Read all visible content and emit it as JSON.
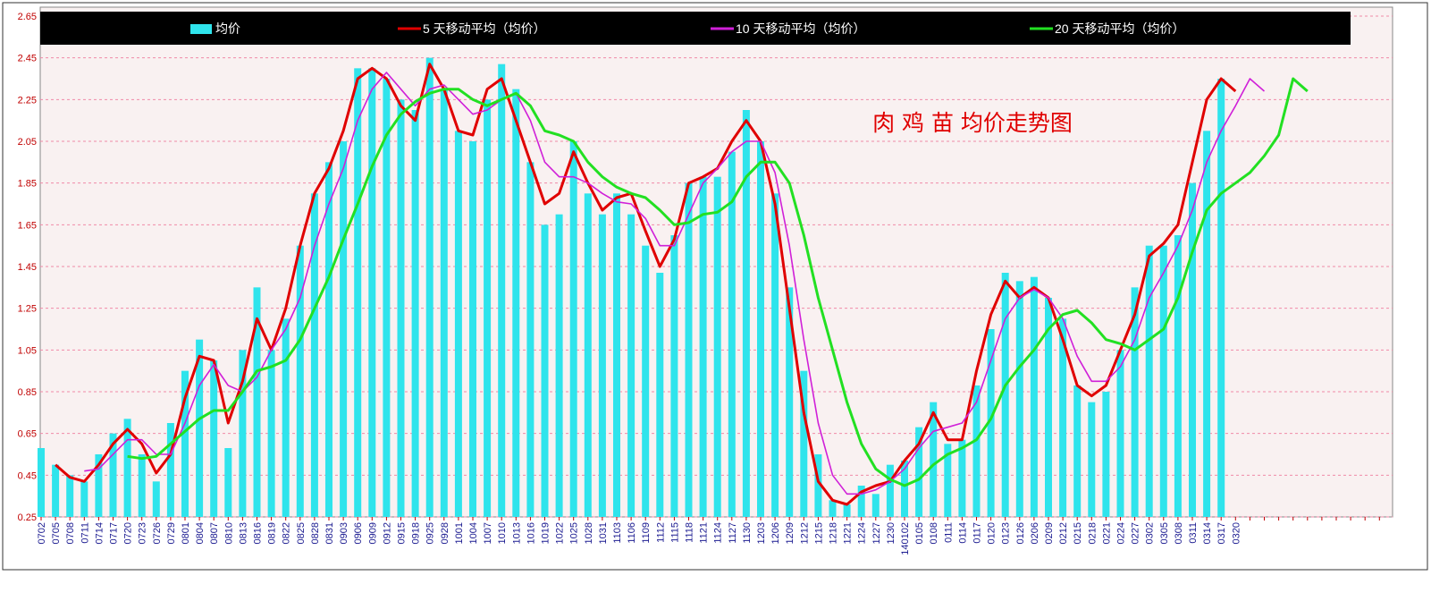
{
  "chart_data": {
    "type": "bar-line",
    "title": "肉 鸡 苗 均价走势图",
    "categories": [
      "0702",
      "0705",
      "0708",
      "0711",
      "0714",
      "0717",
      "0720",
      "0723",
      "0726",
      "0729",
      "0801",
      "0804",
      "0807",
      "0810",
      "0813",
      "0816",
      "0819",
      "0822",
      "0825",
      "0828",
      "0831",
      "0903",
      "0906",
      "0909",
      "0912",
      "0915",
      "0918",
      "0925",
      "0928",
      "1001",
      "1004",
      "1007",
      "1010",
      "1013",
      "1016",
      "1019",
      "1022",
      "1025",
      "1028",
      "1031",
      "1103",
      "1106",
      "1109",
      "1112",
      "1115",
      "1118",
      "1121",
      "1124",
      "1127",
      "1130",
      "1203",
      "1206",
      "1209",
      "1212",
      "1215",
      "1218",
      "1221",
      "1224",
      "1227",
      "1230",
      "140102",
      "0105",
      "0108",
      "0111",
      "0114",
      "0117",
      "0120",
      "0123",
      "0126",
      "0206",
      "0209",
      "0212",
      "0215",
      "0218",
      "0221",
      "0224",
      "0227",
      "0302",
      "0305",
      "0308",
      "0311",
      "0314",
      "0317",
      "0320",
      null,
      null,
      null,
      null,
      null,
      null,
      null,
      null,
      null,
      null
    ],
    "series": [
      {
        "name": "均价",
        "kind": "bar",
        "color": "#2fe4ec",
        "values": [
          0.58,
          0.5,
          0.45,
          0.42,
          0.55,
          0.65,
          0.72,
          0.55,
          0.42,
          0.7,
          0.95,
          1.1,
          1.0,
          0.58,
          1.05,
          1.35,
          1.05,
          1.2,
          1.55,
          1.8,
          1.95,
          2.05,
          2.4,
          2.4,
          2.35,
          2.25,
          2.2,
          2.45,
          2.3,
          2.1,
          2.05,
          2.25,
          2.42,
          2.3,
          1.95,
          1.65,
          1.7,
          2.05,
          1.8,
          1.7,
          1.8,
          1.7,
          1.55,
          1.42,
          1.6,
          1.85,
          1.88,
          1.88,
          2.0,
          2.2,
          2.05,
          1.8,
          1.35,
          0.95,
          0.55,
          0.33,
          0.31,
          0.4,
          0.36,
          0.5,
          0.52,
          0.68,
          0.8,
          0.6,
          0.62,
          0.88,
          1.15,
          1.42,
          1.38,
          1.4,
          1.3,
          1.2,
          0.88,
          0.8,
          0.85,
          1.05,
          1.35,
          1.55,
          1.55,
          1.6,
          1.85,
          2.1,
          2.35,
          null,
          null,
          null,
          null,
          null,
          null,
          null,
          null,
          null,
          null,
          null
        ]
      },
      {
        "name": "5 天移动平均（均价）",
        "kind": "line",
        "color": "#e00000",
        "values": [
          null,
          0.5,
          0.44,
          0.42,
          0.5,
          0.6,
          0.67,
          0.6,
          0.46,
          0.55,
          0.82,
          1.02,
          1.0,
          0.7,
          0.9,
          1.2,
          1.05,
          1.25,
          1.55,
          1.8,
          1.92,
          2.1,
          2.35,
          2.4,
          2.35,
          2.22,
          2.15,
          2.42,
          2.3,
          2.1,
          2.08,
          2.3,
          2.35,
          2.15,
          1.95,
          1.75,
          1.8,
          2.0,
          1.85,
          1.72,
          1.78,
          1.8,
          1.62,
          1.45,
          1.58,
          1.85,
          1.88,
          1.92,
          2.05,
          2.15,
          2.05,
          1.75,
          1.25,
          0.75,
          0.42,
          0.33,
          0.31,
          0.37,
          0.4,
          0.42,
          0.52,
          0.6,
          0.75,
          0.62,
          0.62,
          0.95,
          1.22,
          1.38,
          1.3,
          1.35,
          1.3,
          1.1,
          0.88,
          0.83,
          0.88,
          1.05,
          1.22,
          1.5,
          1.56,
          1.65,
          1.95,
          2.25,
          2.35,
          2.29,
          null,
          null,
          null,
          null,
          null,
          null,
          null,
          null,
          null,
          null
        ]
      },
      {
        "name": "10 天移动平均（均价）",
        "kind": "line",
        "color": "#d020d8",
        "values": [
          null,
          null,
          null,
          0.47,
          0.48,
          0.55,
          0.62,
          0.62,
          0.55,
          0.55,
          0.7,
          0.88,
          0.98,
          0.88,
          0.85,
          0.92,
          1.05,
          1.15,
          1.3,
          1.55,
          1.75,
          1.92,
          2.15,
          2.3,
          2.38,
          2.3,
          2.22,
          2.3,
          2.32,
          2.25,
          2.18,
          2.2,
          2.25,
          2.28,
          2.15,
          1.95,
          1.88,
          1.88,
          1.85,
          1.8,
          1.76,
          1.75,
          1.68,
          1.55,
          1.55,
          1.7,
          1.85,
          1.92,
          2.0,
          2.05,
          2.05,
          1.9,
          1.55,
          1.1,
          0.7,
          0.45,
          0.36,
          0.36,
          0.38,
          0.42,
          0.48,
          0.58,
          0.66,
          0.68,
          0.7,
          0.8,
          1.0,
          1.2,
          1.3,
          1.34,
          1.3,
          1.2,
          1.02,
          0.9,
          0.9,
          0.97,
          1.1,
          1.3,
          1.42,
          1.55,
          1.72,
          1.95,
          2.1,
          2.22,
          2.35,
          2.29,
          null,
          null,
          null,
          null,
          null,
          null,
          null,
          null
        ]
      },
      {
        "name": "20 天移动平均（均价）",
        "kind": "line",
        "color": "#22e022",
        "values": [
          null,
          null,
          null,
          null,
          null,
          null,
          0.54,
          0.53,
          0.54,
          0.6,
          0.66,
          0.72,
          0.76,
          0.76,
          0.85,
          0.95,
          0.97,
          1.0,
          1.1,
          1.25,
          1.4,
          1.58,
          1.75,
          1.93,
          2.08,
          2.18,
          2.24,
          2.28,
          2.3,
          2.3,
          2.25,
          2.22,
          2.25,
          2.28,
          2.22,
          2.1,
          2.08,
          2.05,
          1.95,
          1.88,
          1.83,
          1.8,
          1.78,
          1.72,
          1.65,
          1.66,
          1.7,
          1.71,
          1.76,
          1.88,
          1.95,
          1.95,
          1.85,
          1.6,
          1.3,
          1.05,
          0.8,
          0.6,
          0.48,
          0.43,
          0.4,
          0.43,
          0.5,
          0.55,
          0.58,
          0.62,
          0.72,
          0.88,
          0.97,
          1.05,
          1.15,
          1.22,
          1.24,
          1.18,
          1.1,
          1.08,
          1.05,
          1.1,
          1.15,
          1.3,
          1.52,
          1.72,
          1.8,
          1.85,
          1.9,
          1.98,
          2.08,
          2.35,
          2.29,
          null,
          null,
          null,
          null,
          null
        ]
      }
    ],
    "ylim": [
      0.25,
      2.65
    ],
    "yticks": [
      0.25,
      0.45,
      0.65,
      0.85,
      1.05,
      1.25,
      1.45,
      1.65,
      1.85,
      2.05,
      2.25,
      2.45,
      2.65
    ],
    "grid": true,
    "legend": "top"
  }
}
